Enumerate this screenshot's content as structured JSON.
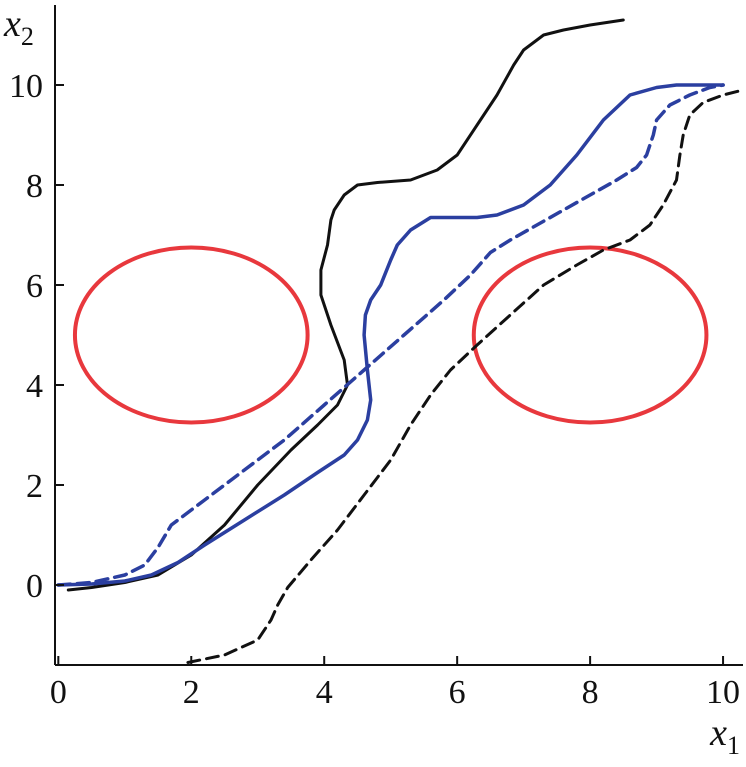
{
  "chart_data": {
    "type": "line",
    "title": "",
    "xlabel": "x",
    "xlabel_sub": "1",
    "ylabel": "x",
    "ylabel_sub": "2",
    "xlim": [
      -0.05,
      10.3
    ],
    "ylim": [
      -1.6,
      11.6
    ],
    "xticks": [
      0,
      2,
      4,
      6,
      8,
      10
    ],
    "yticks": [
      0,
      2,
      4,
      6,
      8,
      10
    ],
    "grid": false,
    "obstacles": [
      {
        "cx": 2.0,
        "cy": 5.0,
        "rx": 1.75,
        "ry": 1.75,
        "color": "#e8383d"
      },
      {
        "cx": 8.0,
        "cy": 5.0,
        "rx": 1.75,
        "ry": 1.75,
        "color": "#e8383d"
      }
    ],
    "series": [
      {
        "color": "#111111",
        "dash": "solid",
        "x": [
          0.15,
          0.5,
          1.0,
          1.5,
          2.0,
          2.5,
          3.0,
          3.5,
          3.9,
          4.2,
          4.35,
          4.3,
          4.1,
          3.95,
          3.95,
          4.05,
          4.1,
          4.15,
          4.3,
          4.5,
          4.8,
          5.3,
          5.7,
          6.0,
          6.3,
          6.6,
          6.85,
          7.0,
          7.3,
          7.6,
          8.0,
          8.5
        ],
        "y": [
          -0.1,
          -0.05,
          0.05,
          0.2,
          0.6,
          1.2,
          2.0,
          2.7,
          3.2,
          3.6,
          4.0,
          4.5,
          5.2,
          5.8,
          6.3,
          6.8,
          7.3,
          7.5,
          7.8,
          8.0,
          8.05,
          8.1,
          8.3,
          8.6,
          9.2,
          9.8,
          10.4,
          10.7,
          11.0,
          11.1,
          11.2,
          11.3
        ]
      },
      {
        "color": "#2b3fa0",
        "dash": "solid",
        "x": [
          0.0,
          0.5,
          1.0,
          1.4,
          1.8,
          2.2,
          2.8,
          3.4,
          3.9,
          4.3,
          4.5,
          4.65,
          4.7,
          4.65,
          4.6,
          4.62,
          4.7,
          4.85,
          5.0,
          5.1,
          5.3,
          5.6,
          6.0,
          6.3,
          6.6,
          7.0,
          7.4,
          7.8,
          8.2,
          8.6,
          9.0,
          9.3,
          9.7,
          10.0
        ],
        "y": [
          0.0,
          0.02,
          0.08,
          0.2,
          0.45,
          0.8,
          1.3,
          1.8,
          2.25,
          2.6,
          2.9,
          3.3,
          3.7,
          4.3,
          5.0,
          5.4,
          5.7,
          6.0,
          6.5,
          6.8,
          7.1,
          7.35,
          7.35,
          7.35,
          7.4,
          7.6,
          8.0,
          8.6,
          9.3,
          9.8,
          9.95,
          10.0,
          10.0,
          10.0
        ]
      },
      {
        "color": "#2b3fa0",
        "dash": "dashed",
        "x": [
          0.0,
          0.5,
          1.0,
          1.3,
          1.5,
          1.7,
          2.2,
          2.8,
          3.4,
          4.0,
          4.6,
          5.2,
          5.8,
          6.2,
          6.5,
          6.8,
          7.2,
          7.6,
          8.0,
          8.4,
          8.7,
          8.85,
          8.95,
          9.0,
          9.2,
          9.5,
          9.8,
          10.0
        ],
        "y": [
          0.0,
          0.05,
          0.2,
          0.4,
          0.75,
          1.2,
          1.7,
          2.3,
          2.9,
          3.6,
          4.3,
          5.0,
          5.7,
          6.2,
          6.65,
          6.9,
          7.2,
          7.5,
          7.8,
          8.1,
          8.35,
          8.6,
          9.0,
          9.3,
          9.6,
          9.8,
          9.95,
          10.0
        ]
      },
      {
        "color": "#111111",
        "dash": "dashed",
        "x": [
          1.95,
          2.5,
          3.0,
          3.2,
          3.3,
          3.45,
          3.8,
          4.2,
          4.6,
          5.0,
          5.3,
          5.6,
          5.9,
          6.3,
          6.8,
          7.3,
          7.8,
          8.2,
          8.6,
          8.9,
          9.1,
          9.3,
          9.35,
          9.4,
          9.5,
          9.7,
          10.0,
          10.3
        ],
        "y": [
          -1.55,
          -1.4,
          -1.1,
          -0.7,
          -0.4,
          -0.05,
          0.5,
          1.1,
          1.8,
          2.5,
          3.2,
          3.8,
          4.3,
          4.8,
          5.4,
          6.0,
          6.4,
          6.7,
          6.9,
          7.2,
          7.6,
          8.1,
          8.6,
          9.0,
          9.4,
          9.65,
          9.8,
          9.9
        ]
      }
    ]
  }
}
